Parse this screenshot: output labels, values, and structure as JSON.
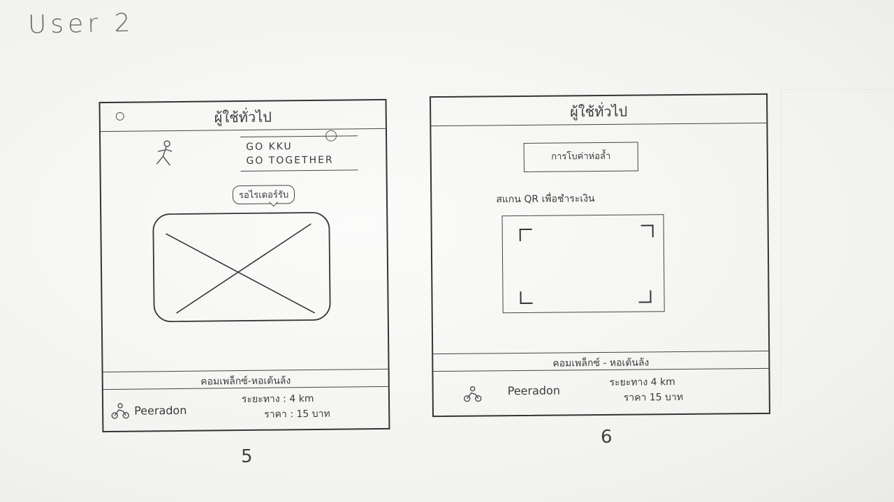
{
  "document": {
    "title": "User 2",
    "page_numbers": [
      "5",
      "6"
    ]
  },
  "screens": [
    {
      "id": "screen-five",
      "header": {
        "title": "ผู้ใช้ทั่วไป"
      },
      "app_name_lines": [
        "GO KKU",
        "GO TOGETHER"
      ],
      "speech_bubble": "รอไรเดอร์รับ",
      "route": "คอมเพล็กซ์-หอเต้นล้ง",
      "rider_name": "Peeradon",
      "distance": "ระยะทาง : 4 km",
      "price": "ราคา : 15 บาท",
      "icons": {
        "header": "circle-icon",
        "runner": "runner-icon",
        "clock": "clock-icon",
        "rider": "motorbike-icon"
      }
    },
    {
      "id": "screen-six",
      "header": {
        "title": "ผู้ใช้ทั่วไป"
      },
      "tracking_button": "การโบค่าห่อล้ำ",
      "scan_caption": "สแกน QR เพื่อชำระเงิน",
      "route": "คอมเพล็กซ์ - หอเต้นล้ง",
      "rider_name": "Peeradon",
      "distance": "ระยะทาง 4 km",
      "price": "ราคา 15 บาท",
      "icons": {
        "rider": "motorbike-icon"
      }
    }
  ],
  "colors": {
    "paper": "#f3f3f2",
    "ink": "#2d2d2d",
    "pencil": "#6b6b6b"
  }
}
